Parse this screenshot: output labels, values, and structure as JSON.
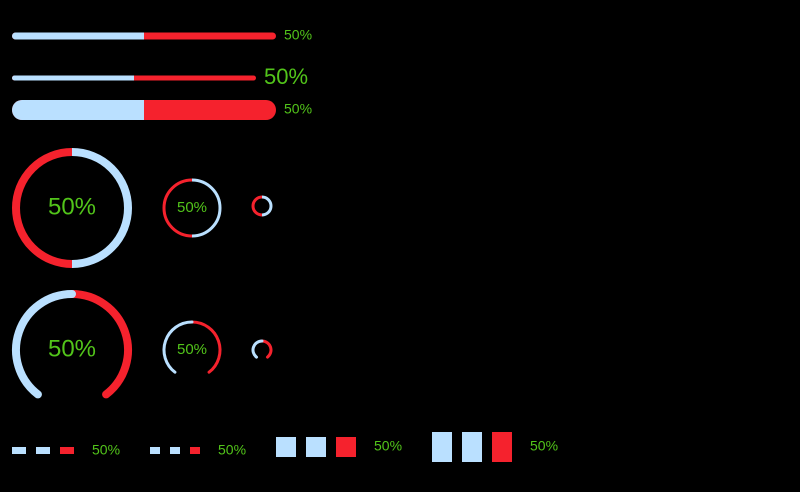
{
  "colors": {
    "fill": "#bae0ff",
    "trail": "#f5222d",
    "text": "#52c41a",
    "background": "#000000"
  },
  "components": [
    {
      "kind": "line",
      "value": 50,
      "label": "50%"
    },
    {
      "kind": "line",
      "value": 50,
      "label": "50%"
    },
    {
      "kind": "line",
      "value": 50,
      "label": "50%"
    },
    {
      "kind": "circle",
      "value": 50,
      "label": "50%"
    },
    {
      "kind": "circle",
      "value": 50,
      "label": "50%"
    },
    {
      "kind": "circle",
      "value": 50
    },
    {
      "kind": "dashboard",
      "value": 50,
      "label": "50%"
    },
    {
      "kind": "dashboard",
      "value": 50,
      "label": "50%"
    },
    {
      "kind": "dashboard",
      "value": 50
    },
    {
      "kind": "steps",
      "steps": 3,
      "value": 50,
      "label": "50%"
    },
    {
      "kind": "steps",
      "steps": 3,
      "value": 50,
      "label": "50%"
    },
    {
      "kind": "steps",
      "steps": 3,
      "value": 50,
      "label": "50%"
    },
    {
      "kind": "steps",
      "steps": 3,
      "value": 50,
      "label": "50%"
    }
  ]
}
